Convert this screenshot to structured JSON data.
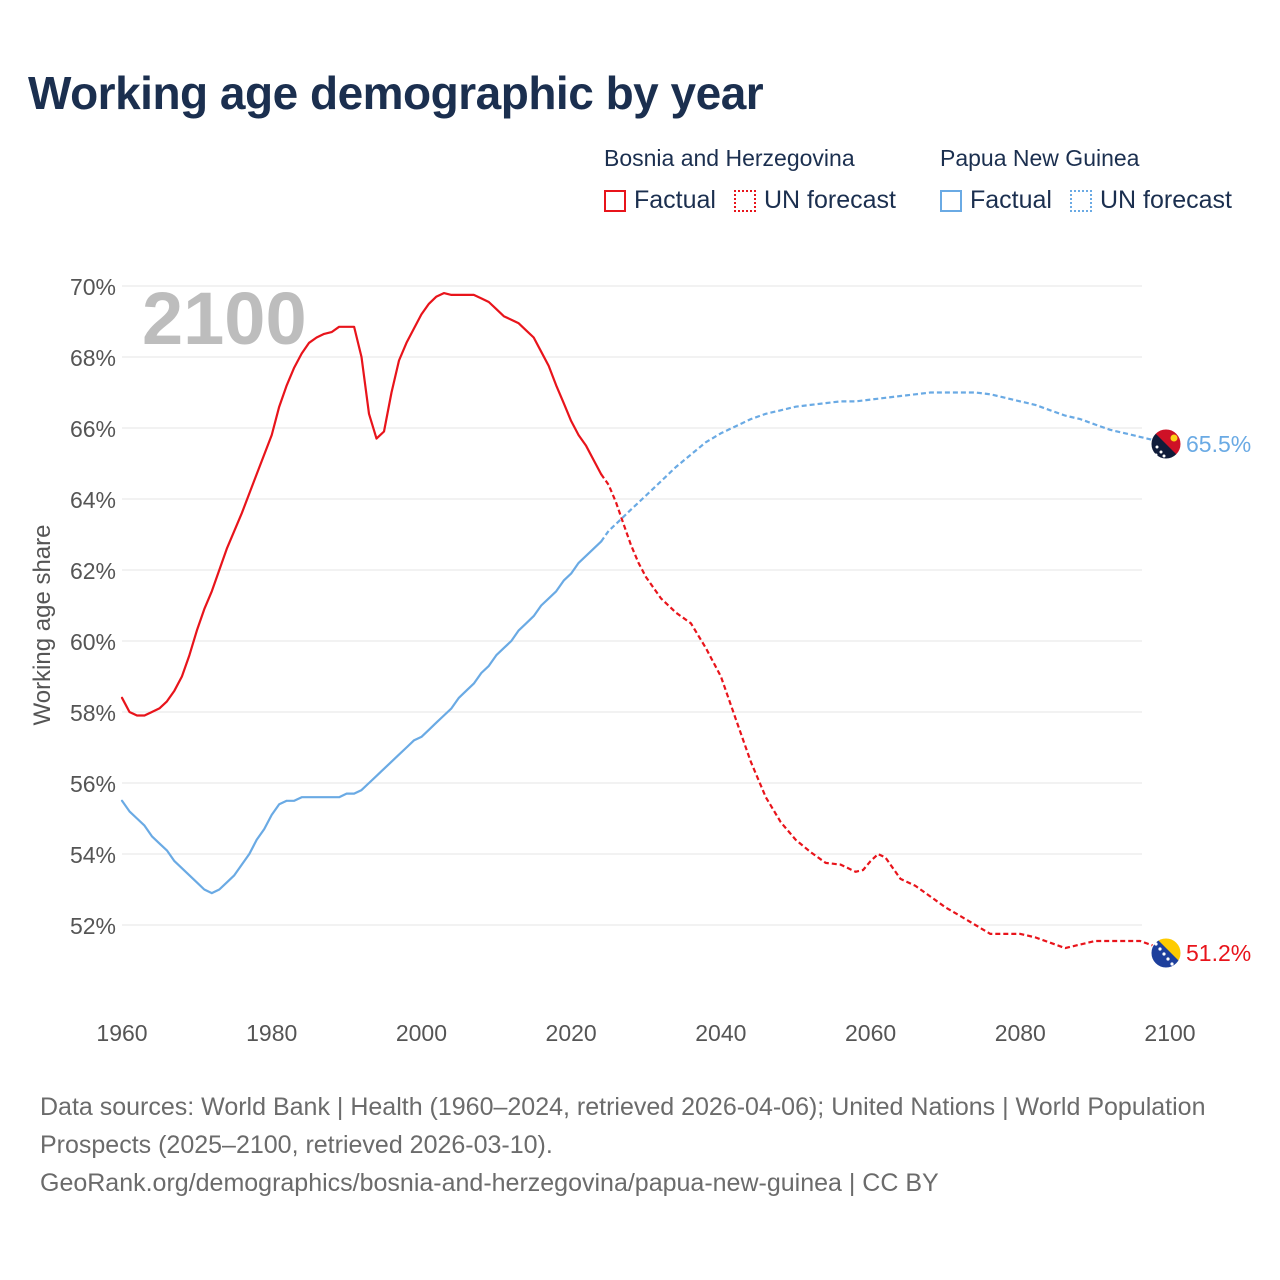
{
  "title": "Working age demographic by year",
  "legend": {
    "groups": [
      {
        "country": "Bosnia and Herzegovina",
        "factual_label": "Factual",
        "forecast_label": "UN forecast",
        "color": "#e8141b"
      },
      {
        "country": "Papua New Guinea",
        "factual_label": "Factual",
        "forecast_label": "UN forecast",
        "color": "#6aaae4"
      }
    ]
  },
  "chart_data": {
    "type": "line",
    "title": "Working age demographic by year",
    "ylabel": "Working age share",
    "xlabel": "",
    "xlim": [
      1960,
      2100
    ],
    "ylim": [
      50,
      70
    ],
    "x_ticks": [
      1960,
      1980,
      2000,
      2020,
      2040,
      2060,
      2080,
      2100
    ],
    "y_ticks": [
      52,
      54,
      56,
      58,
      60,
      62,
      64,
      66,
      68,
      70
    ],
    "y_tick_suffix": "%",
    "year_watermark": "2100",
    "factual_until": 2024,
    "series": [
      {
        "name": "Bosnia and Herzegovina",
        "color": "#e8141b",
        "end_label": "51.2%",
        "end_icon": "bosnia-flag-icon",
        "points": [
          [
            1960,
            58.4
          ],
          [
            1961,
            58.0
          ],
          [
            1962,
            57.9
          ],
          [
            1963,
            57.9
          ],
          [
            1964,
            58.0
          ],
          [
            1965,
            58.1
          ],
          [
            1966,
            58.3
          ],
          [
            1967,
            58.6
          ],
          [
            1968,
            59.0
          ],
          [
            1969,
            59.6
          ],
          [
            1970,
            60.3
          ],
          [
            1971,
            60.9
          ],
          [
            1972,
            61.4
          ],
          [
            1974,
            62.6
          ],
          [
            1976,
            63.6
          ],
          [
            1978,
            64.7
          ],
          [
            1980,
            65.8
          ],
          [
            1981,
            66.6
          ],
          [
            1982,
            67.2
          ],
          [
            1983,
            67.7
          ],
          [
            1984,
            68.1
          ],
          [
            1985,
            68.4
          ],
          [
            1986,
            68.55
          ],
          [
            1987,
            68.65
          ],
          [
            1988,
            68.7
          ],
          [
            1989,
            68.85
          ],
          [
            1990,
            68.85
          ],
          [
            1991,
            68.85
          ],
          [
            1992,
            68.0
          ],
          [
            1993,
            66.4
          ],
          [
            1994,
            65.7
          ],
          [
            1995,
            65.9
          ],
          [
            1996,
            67.0
          ],
          [
            1997,
            67.9
          ],
          [
            1998,
            68.4
          ],
          [
            1999,
            68.8
          ],
          [
            2000,
            69.2
          ],
          [
            2001,
            69.5
          ],
          [
            2002,
            69.7
          ],
          [
            2003,
            69.8
          ],
          [
            2004,
            69.75
          ],
          [
            2005,
            69.75
          ],
          [
            2006,
            69.75
          ],
          [
            2007,
            69.75
          ],
          [
            2008,
            69.65
          ],
          [
            2009,
            69.55
          ],
          [
            2010,
            69.35
          ],
          [
            2011,
            69.15
          ],
          [
            2012,
            69.05
          ],
          [
            2013,
            68.95
          ],
          [
            2014,
            68.75
          ],
          [
            2015,
            68.55
          ],
          [
            2016,
            68.15
          ],
          [
            2017,
            67.75
          ],
          [
            2018,
            67.2
          ],
          [
            2019,
            66.7
          ],
          [
            2020,
            66.2
          ],
          [
            2021,
            65.8
          ],
          [
            2022,
            65.5
          ],
          [
            2023,
            65.1
          ],
          [
            2024,
            64.7
          ]
        ],
        "forecast": [
          [
            2024,
            64.7
          ],
          [
            2025,
            64.4
          ],
          [
            2026,
            63.9
          ],
          [
            2027,
            63.3
          ],
          [
            2028,
            62.7
          ],
          [
            2029,
            62.2
          ],
          [
            2030,
            61.8
          ],
          [
            2032,
            61.2
          ],
          [
            2034,
            60.8
          ],
          [
            2036,
            60.5
          ],
          [
            2038,
            59.8
          ],
          [
            2040,
            59.0
          ],
          [
            2042,
            57.8
          ],
          [
            2044,
            56.6
          ],
          [
            2046,
            55.6
          ],
          [
            2048,
            54.9
          ],
          [
            2050,
            54.4
          ],
          [
            2052,
            54.05
          ],
          [
            2054,
            53.75
          ],
          [
            2056,
            53.7
          ],
          [
            2058,
            53.5
          ],
          [
            2059,
            53.55
          ],
          [
            2060,
            53.8
          ],
          [
            2061,
            54.0
          ],
          [
            2062,
            53.9
          ],
          [
            2064,
            53.3
          ],
          [
            2066,
            53.1
          ],
          [
            2068,
            52.8
          ],
          [
            2070,
            52.5
          ],
          [
            2072,
            52.25
          ],
          [
            2074,
            52.0
          ],
          [
            2076,
            51.75
          ],
          [
            2078,
            51.75
          ],
          [
            2080,
            51.75
          ],
          [
            2082,
            51.65
          ],
          [
            2084,
            51.5
          ],
          [
            2086,
            51.35
          ],
          [
            2088,
            51.45
          ],
          [
            2090,
            51.55
          ],
          [
            2092,
            51.55
          ],
          [
            2094,
            51.55
          ],
          [
            2096,
            51.55
          ],
          [
            2098,
            51.4
          ],
          [
            2100,
            51.2
          ]
        ]
      },
      {
        "name": "Papua New Guinea",
        "color": "#6aaae4",
        "end_label": "65.5%",
        "end_icon": "papua-new-guinea-flag-icon",
        "points": [
          [
            1960,
            55.5
          ],
          [
            1961,
            55.2
          ],
          [
            1962,
            55.0
          ],
          [
            1963,
            54.8
          ],
          [
            1964,
            54.5
          ],
          [
            1965,
            54.3
          ],
          [
            1966,
            54.1
          ],
          [
            1967,
            53.8
          ],
          [
            1968,
            53.6
          ],
          [
            1969,
            53.4
          ],
          [
            1970,
            53.2
          ],
          [
            1971,
            53.0
          ],
          [
            1972,
            52.9
          ],
          [
            1973,
            53.0
          ],
          [
            1974,
            53.2
          ],
          [
            1975,
            53.4
          ],
          [
            1976,
            53.7
          ],
          [
            1977,
            54.0
          ],
          [
            1978,
            54.4
          ],
          [
            1979,
            54.7
          ],
          [
            1980,
            55.1
          ],
          [
            1981,
            55.4
          ],
          [
            1982,
            55.5
          ],
          [
            1983,
            55.5
          ],
          [
            1984,
            55.6
          ],
          [
            1985,
            55.6
          ],
          [
            1986,
            55.6
          ],
          [
            1987,
            55.6
          ],
          [
            1988,
            55.6
          ],
          [
            1989,
            55.6
          ],
          [
            1990,
            55.7
          ],
          [
            1991,
            55.7
          ],
          [
            1992,
            55.8
          ],
          [
            1993,
            56.0
          ],
          [
            1994,
            56.2
          ],
          [
            1995,
            56.4
          ],
          [
            1996,
            56.6
          ],
          [
            1997,
            56.8
          ],
          [
            1998,
            57.0
          ],
          [
            1999,
            57.2
          ],
          [
            2000,
            57.3
          ],
          [
            2001,
            57.5
          ],
          [
            2002,
            57.7
          ],
          [
            2003,
            57.9
          ],
          [
            2004,
            58.1
          ],
          [
            2005,
            58.4
          ],
          [
            2006,
            58.6
          ],
          [
            2007,
            58.8
          ],
          [
            2008,
            59.1
          ],
          [
            2009,
            59.3
          ],
          [
            2010,
            59.6
          ],
          [
            2011,
            59.8
          ],
          [
            2012,
            60.0
          ],
          [
            2013,
            60.3
          ],
          [
            2014,
            60.5
          ],
          [
            2015,
            60.7
          ],
          [
            2016,
            61.0
          ],
          [
            2017,
            61.2
          ],
          [
            2018,
            61.4
          ],
          [
            2019,
            61.7
          ],
          [
            2020,
            61.9
          ],
          [
            2021,
            62.2
          ],
          [
            2022,
            62.4
          ],
          [
            2023,
            62.6
          ],
          [
            2024,
            62.8
          ]
        ],
        "forecast": [
          [
            2024,
            62.8
          ],
          [
            2025,
            63.1
          ],
          [
            2026,
            63.3
          ],
          [
            2028,
            63.7
          ],
          [
            2030,
            64.1
          ],
          [
            2032,
            64.5
          ],
          [
            2034,
            64.9
          ],
          [
            2036,
            65.25
          ],
          [
            2038,
            65.6
          ],
          [
            2040,
            65.85
          ],
          [
            2042,
            66.05
          ],
          [
            2044,
            66.25
          ],
          [
            2046,
            66.4
          ],
          [
            2048,
            66.5
          ],
          [
            2050,
            66.6
          ],
          [
            2052,
            66.65
          ],
          [
            2054,
            66.7
          ],
          [
            2056,
            66.75
          ],
          [
            2058,
            66.75
          ],
          [
            2060,
            66.8
          ],
          [
            2062,
            66.85
          ],
          [
            2064,
            66.9
          ],
          [
            2066,
            66.95
          ],
          [
            2068,
            67.0
          ],
          [
            2070,
            67.0
          ],
          [
            2072,
            67.0
          ],
          [
            2074,
            67.0
          ],
          [
            2076,
            66.95
          ],
          [
            2078,
            66.85
          ],
          [
            2080,
            66.75
          ],
          [
            2082,
            66.65
          ],
          [
            2084,
            66.5
          ],
          [
            2086,
            66.35
          ],
          [
            2088,
            66.25
          ],
          [
            2090,
            66.1
          ],
          [
            2092,
            65.95
          ],
          [
            2094,
            65.85
          ],
          [
            2096,
            65.75
          ],
          [
            2098,
            65.65
          ],
          [
            2100,
            65.5
          ]
        ]
      }
    ]
  },
  "source": {
    "line1": "Data sources: World Bank | Health (1960–2024, retrieved 2026-04-06); United Nations | World Population Prospects (2025–2100, retrieved 2026-03-10).",
    "line2": "GeoRank.org/demographics/bosnia-and-herzegovina/papua-new-guinea | CC BY"
  }
}
